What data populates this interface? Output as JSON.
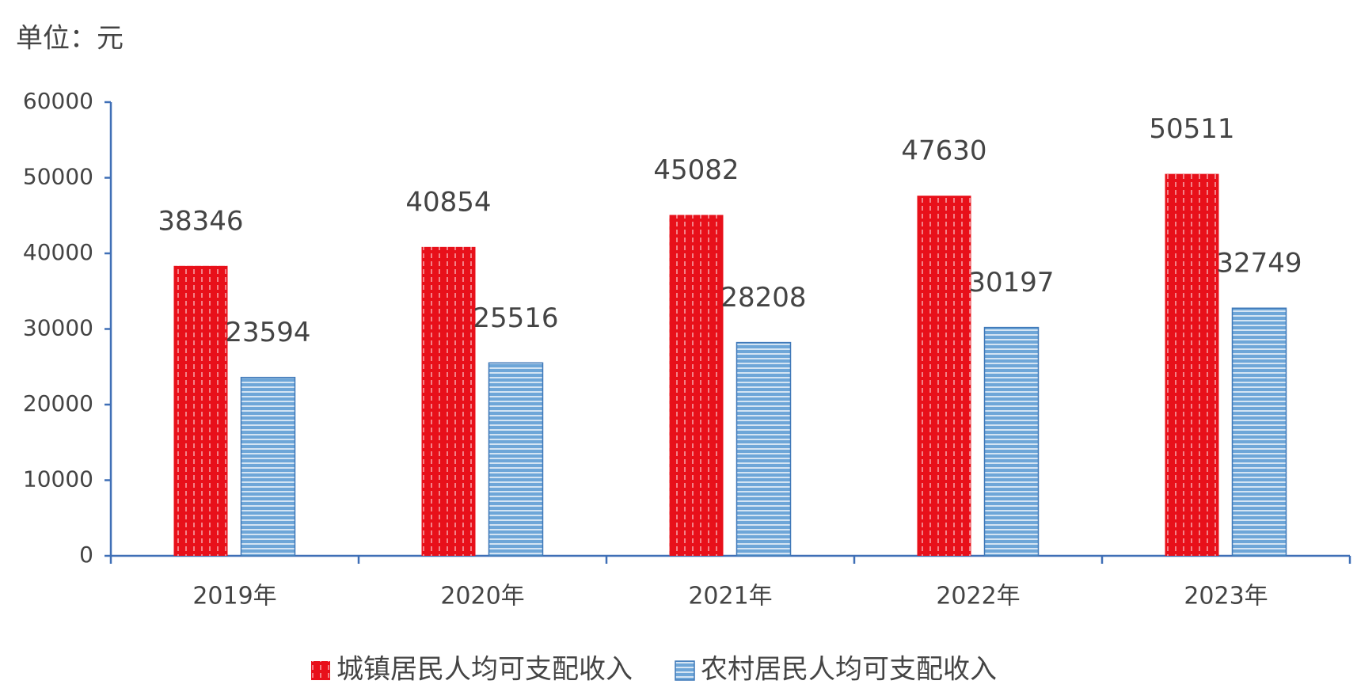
{
  "chart_data": {
    "type": "bar",
    "ylabel": "单位：元",
    "categories": [
      "2019年",
      "2020年",
      "2021年",
      "2022年",
      "2023年"
    ],
    "series": [
      {
        "name": "城镇居民人均可支配收入",
        "color": "#e8101a",
        "pattern": "vertical-dashes",
        "values": [
          38346,
          40854,
          45082,
          47630,
          50511
        ]
      },
      {
        "name": "农村居民人均可支配收入",
        "color": "#6ea6d8",
        "pattern": "horizontal-lines",
        "values": [
          23594,
          25516,
          28208,
          30197,
          32749
        ]
      }
    ],
    "ylim": [
      0,
      60000
    ],
    "yticks": [
      0,
      10000,
      20000,
      30000,
      40000,
      50000,
      60000
    ],
    "grid": false,
    "legend": "bottom"
  }
}
